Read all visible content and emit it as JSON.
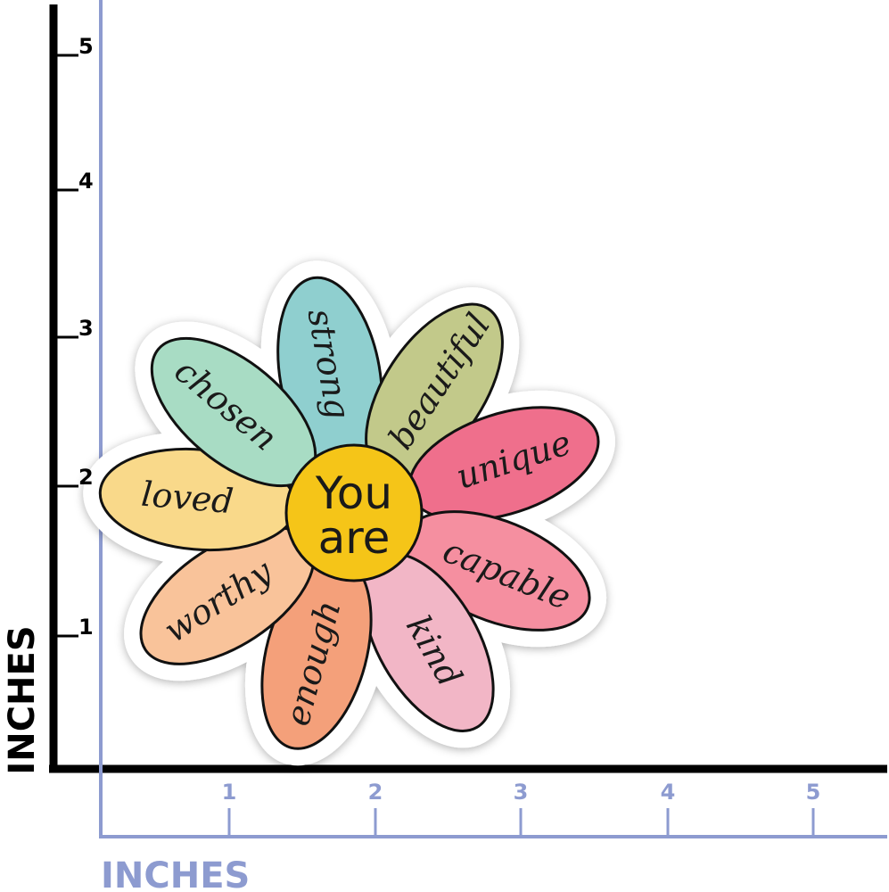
{
  "ruler": {
    "vertical": {
      "label": "INCHES",
      "ticks": [
        "1",
        "2",
        "3",
        "4",
        "5"
      ]
    },
    "horizontal": {
      "label": "INCHES",
      "ticks": [
        "1",
        "2",
        "3",
        "4",
        "5"
      ]
    }
  },
  "flower": {
    "center": [
      "You",
      "are"
    ],
    "petals": [
      "strong",
      "beautiful",
      "unique",
      "capable",
      "kind",
      "enough",
      "worthy",
      "loved",
      "chosen"
    ]
  }
}
